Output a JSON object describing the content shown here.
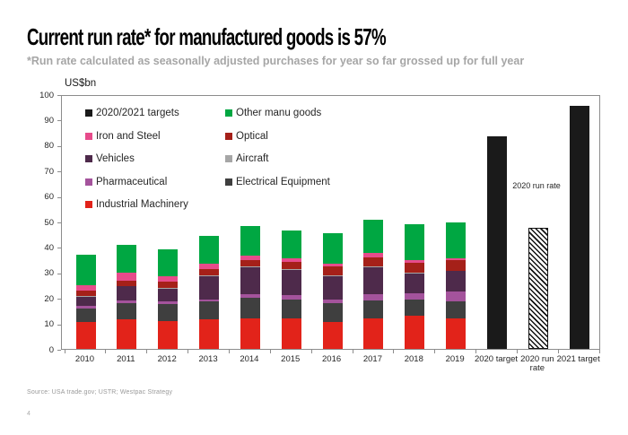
{
  "header": {
    "title": "Current run rate* for manufactured goods is 57%",
    "subtitle": "*Run rate calculated as seasonally adjusted purchases for year so far grossed up for full year"
  },
  "footer": {
    "source": "Source: USA trade.gov; USTR; Westpac Strategy",
    "page_number": "4"
  },
  "chart_data": {
    "type": "bar",
    "stacked": true,
    "title": "",
    "ylabel": "US$bn",
    "xlabel": "",
    "ylim": [
      0,
      100
    ],
    "ytick_step": 10,
    "grid": false,
    "legend_position": "top-left-inside",
    "categories": [
      "2010",
      "2011",
      "2012",
      "2013",
      "2014",
      "2015",
      "2016",
      "2017",
      "2018",
      "2019",
      "2020 target",
      "2020 run rate",
      "2021 target"
    ],
    "series": [
      {
        "name": "Industrial Machinery",
        "color": "#e2231a",
        "values": [
          10.5,
          11.5,
          11,
          11.5,
          12,
          12,
          10.5,
          12,
          13,
          12,
          0,
          0,
          0
        ]
      },
      {
        "name": "Electrical Equipment",
        "color": "#3f3f3f",
        "values": [
          5.5,
          6.5,
          6.5,
          7,
          8,
          7.5,
          7.5,
          7,
          6.5,
          6.5,
          0,
          0,
          0
        ]
      },
      {
        "name": "Pharmaceutical",
        "color": "#a4539c",
        "values": [
          1,
          1,
          1,
          1,
          1.5,
          1.5,
          1.5,
          2.5,
          2.5,
          4,
          0,
          0,
          0
        ]
      },
      {
        "name": "Vehicles",
        "color": "#4e2a4b",
        "values": [
          3.5,
          5.5,
          5,
          9,
          10.5,
          10,
          9,
          10.5,
          7.5,
          8,
          0,
          0,
          0
        ]
      },
      {
        "name": "Aircraft",
        "color": "#a6a6a6",
        "values": [
          0.3,
          0.3,
          0.3,
          0.3,
          0.3,
          0.3,
          0.3,
          0.3,
          0.3,
          0.3,
          0,
          0,
          0
        ]
      },
      {
        "name": "Optical",
        "color": "#a52019",
        "values": [
          2,
          2,
          2.5,
          2.5,
          2.5,
          3,
          3.5,
          3.5,
          4,
          4,
          0,
          0,
          0
        ]
      },
      {
        "name": "Iron and Steel",
        "color": "#e74b8b",
        "values": [
          2.2,
          3,
          2.2,
          2,
          2,
          1.2,
          1.2,
          2,
          1,
          0.8,
          0,
          0,
          0
        ]
      },
      {
        "name": "Other manu goods",
        "color": "#00a742",
        "values": [
          12,
          11,
          10.5,
          11,
          11.5,
          11,
          12,
          13,
          14,
          14,
          0,
          0,
          0
        ]
      },
      {
        "name": "2020/2021 targets",
        "color": "#1a1a1a",
        "values": [
          0,
          0,
          0,
          0,
          0,
          0,
          0,
          0,
          0,
          0,
          83.5,
          0,
          95.5
        ]
      },
      {
        "name": "2020 run rate",
        "color": "#ffffff",
        "hatch": true,
        "values": [
          0,
          0,
          0,
          0,
          0,
          0,
          0,
          0,
          0,
          0,
          0,
          47.5,
          0
        ]
      }
    ],
    "totals": [
      37,
      41,
      39,
      44.5,
      48,
      46.5,
      45.5,
      50.5,
      49,
      49.5,
      83.5,
      47.5,
      95.5
    ],
    "annotation": {
      "text": "2020 run rate",
      "near_category": "2020 run rate"
    },
    "legend_columns": [
      [
        {
          "label": "2020/2021 targets",
          "color": "#1a1a1a"
        },
        {
          "label": "Iron and Steel",
          "color": "#e74b8b"
        },
        {
          "label": "Vehicles",
          "color": "#4e2a4b"
        },
        {
          "label": "Pharmaceutical",
          "color": "#a4539c"
        },
        {
          "label": "Industrial Machinery",
          "color": "#e2231a"
        }
      ],
      [
        {
          "label": "Other manu goods",
          "color": "#00a742"
        },
        {
          "label": "Optical",
          "color": "#a52019"
        },
        {
          "label": "Aircraft",
          "color": "#a6a6a6"
        },
        {
          "label": "Electrical Equipment",
          "color": "#3f3f3f"
        }
      ]
    ]
  }
}
